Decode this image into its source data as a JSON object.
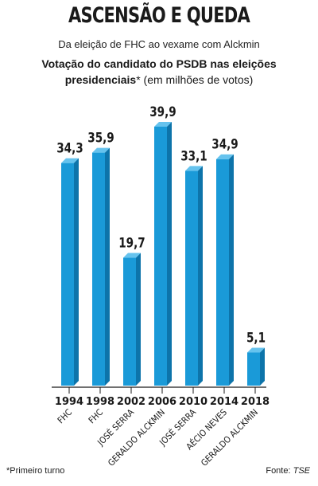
{
  "header": {
    "title": "ASCENSÃO E QUEDA",
    "subtitle": "Da eleição de FHC ao vexame com Alckmin",
    "desc_bold_1": "Votação do candidato do PSDB nas eleições",
    "desc_bold_2": "presidenciais",
    "desc_rest": "* (em milhões de votos)"
  },
  "colors": {
    "bar": "#1a9ad8",
    "bar_top": "#66c3ee",
    "bar_side": "#0d74aa"
  },
  "chart_data": {
    "type": "bar",
    "categories": [
      "1994",
      "1998",
      "2002",
      "2006",
      "2010",
      "2014",
      "2018"
    ],
    "candidates": [
      "FHC",
      "FHC",
      "JOSÉ SERRA",
      "GERALDO ALCKMIN",
      "JOSÉ SERRA",
      "AÉCIO NEVES",
      "GERALDO ALCKMIN"
    ],
    "values": [
      34.3,
      35.9,
      19.7,
      39.9,
      33.1,
      34.9,
      5.1
    ],
    "value_labels": [
      "34,3",
      "35,9",
      "19,7",
      "39,9",
      "33,1",
      "34,9",
      "5,1"
    ],
    "ylim": [
      0,
      39.9
    ]
  },
  "footer": {
    "footnote": "*Primeiro turno",
    "source_label": "Fonte: ",
    "source_value": "TSE"
  }
}
